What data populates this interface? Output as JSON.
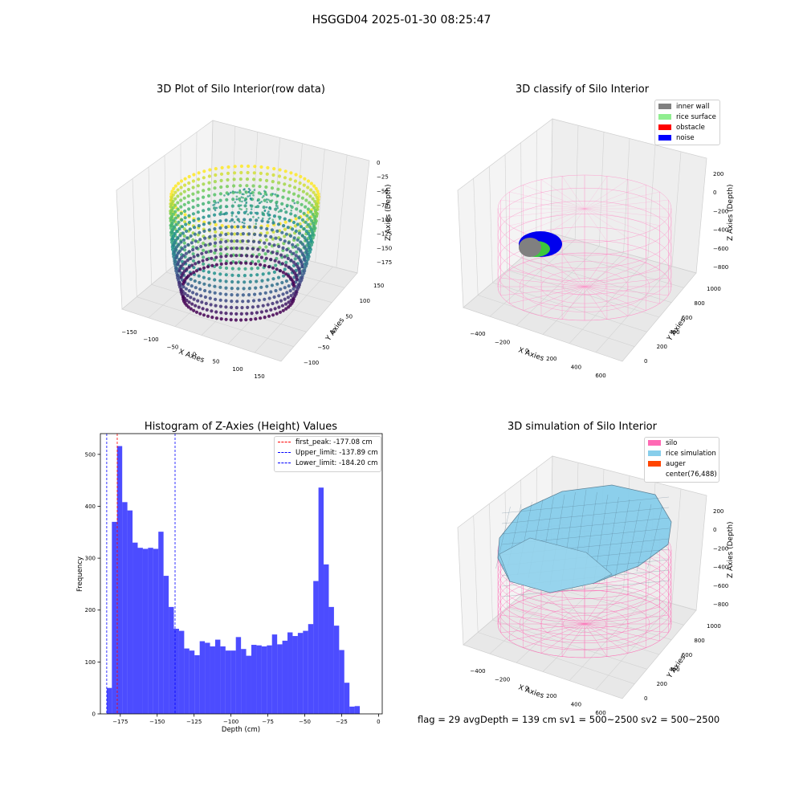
{
  "suptitle": "HSGGD04 2025-01-30 08:25:47",
  "panels": {
    "raw": {
      "title": "3D Plot of Silo Interior(row data)",
      "xlabel": "X Axies",
      "ylabel": "Y Axies",
      "zlabel": "Z Axies (Depth)",
      "xticks": [
        "−150",
        "−100",
        "−50",
        "0",
        "50",
        "100",
        "150"
      ],
      "yticks": [
        "−100",
        "−50",
        "0",
        "50",
        "100",
        "150"
      ],
      "zticks": [
        "0",
        "−25",
        "−50",
        "−75",
        "−100",
        "−125",
        "−150",
        "−175"
      ],
      "colormap": "viridis"
    },
    "classify": {
      "title": "3D classify of Silo Interior",
      "xlabel": "X Axies",
      "ylabel": "Y Axies",
      "zlabel": "Z Axies (Depth)",
      "xticks": [
        "−400",
        "−200",
        "0",
        "200",
        "400",
        "600"
      ],
      "yticks": [
        "0",
        "200",
        "400",
        "600",
        "800",
        "1000"
      ],
      "zticks": [
        "200",
        "0",
        "−200",
        "−400",
        "−600",
        "−800"
      ],
      "legend": [
        {
          "label": "inner wall",
          "color": "#808080"
        },
        {
          "label": "rice surface",
          "color": "#90ee90"
        },
        {
          "label": "obstacle",
          "color": "#ff0000"
        },
        {
          "label": "noise",
          "color": "#0000ff"
        }
      ]
    },
    "simulation": {
      "title": "3D simulation of Silo Interior",
      "xlabel": "X Axies",
      "ylabel": "Y Axies",
      "zlabel": "Z Axies (Depth)",
      "xticks": [
        "−400",
        "−200",
        "0",
        "200",
        "400",
        "600"
      ],
      "yticks": [
        "0",
        "200",
        "400",
        "600",
        "800",
        "1000"
      ],
      "zticks": [
        "200",
        "0",
        "−200",
        "−400",
        "−600",
        "−800"
      ],
      "legend": [
        {
          "label": "silo",
          "color": "#ff69b4"
        },
        {
          "label": "rice simulation",
          "color": "#87ceeb"
        },
        {
          "label": "auger",
          "color": "#ff4500"
        },
        {
          "label": "center(76,488)",
          "color": "#ffffff"
        }
      ]
    }
  },
  "chart_data": [
    {
      "type": "bar",
      "title": "Histogram of Z-Axies (Height) Values",
      "xlabel": "Depth (cm)",
      "ylabel": "Frequency",
      "xlim": [
        -188.5,
        2.5
      ],
      "ylim": [
        0,
        540
      ],
      "xticks": [
        -175,
        -150,
        -125,
        -100,
        -75,
        -50,
        -25,
        0
      ],
      "yticks": [
        0,
        100,
        200,
        300,
        400,
        500
      ],
      "bar_color": "#0000ff",
      "bar_alpha": 0.7,
      "bin_edges_start": -184.2,
      "bin_width": 3.5,
      "values": [
        50,
        370,
        516,
        408,
        392,
        330,
        320,
        318,
        320,
        318,
        351,
        266,
        206,
        164,
        160,
        126,
        122,
        113,
        140,
        137,
        130,
        143,
        130,
        122,
        122,
        148,
        125,
        112,
        133,
        132,
        130,
        132,
        153,
        134,
        141,
        157,
        150,
        156,
        160,
        173,
        256,
        436,
        288,
        206,
        170,
        123,
        60,
        14,
        15
      ],
      "vlines": [
        {
          "x": -177.08,
          "color": "#ff0000",
          "style": "dashed",
          "label": "first_peak: -177.08 cm"
        },
        {
          "x": -137.89,
          "color": "#0000ff",
          "style": "dashed",
          "label": "Upper_limit: -137.89 cm"
        },
        {
          "x": -184.2,
          "color": "#0000ff",
          "style": "dashed",
          "label": "Lower_limit: -184.20 cm"
        }
      ],
      "legend_position": "top-right",
      "grid": false
    }
  ],
  "status": "flag = 29  avgDepth = 139 cm  sv1 = 500~2500  sv2 = 500~2500"
}
